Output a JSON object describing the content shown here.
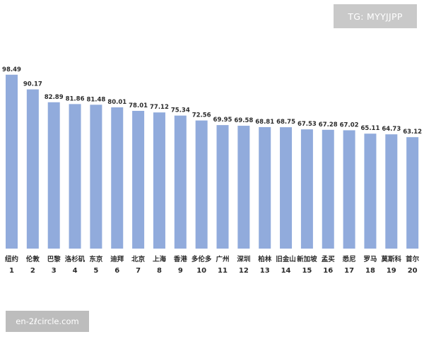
{
  "watermark_top": "TG: MYYJJPP",
  "watermark_bottom": "en-2ℓcircle.com",
  "bar_color": "#91abdc",
  "chart_data": {
    "type": "bar",
    "categories": [
      "纽约",
      "伦敦",
      "巴黎",
      "洛杉矶",
      "东京",
      "迪拜",
      "北京",
      "上海",
      "香港",
      "多伦多",
      "广州",
      "深圳",
      "柏林",
      "旧金山",
      "新加坡",
      "孟买",
      "悉尼",
      "罗马",
      "莫斯科",
      "首尔"
    ],
    "ranks": [
      "1",
      "2",
      "3",
      "4",
      "5",
      "6",
      "7",
      "8",
      "9",
      "10",
      "11",
      "12",
      "13",
      "14",
      "15",
      "16",
      "17",
      "18",
      "19",
      "20"
    ],
    "values": [
      98.49,
      90.17,
      82.89,
      81.86,
      81.48,
      80.01,
      78.01,
      77.12,
      75.34,
      72.56,
      69.95,
      69.58,
      68.81,
      68.75,
      67.53,
      67.28,
      67.02,
      65.11,
      64.73,
      63.12
    ],
    "value_labels": [
      "98.49",
      "90.17",
      "82.89",
      "81.86",
      "81.48",
      "80.01",
      "78.01",
      "77.12",
      "75.34",
      "72.56",
      "69.95",
      "69.58",
      "68.81",
      "68.75",
      "67.53",
      "67.28",
      "67.02",
      "65.11",
      "64.73",
      "63.12"
    ],
    "ylim": [
      0,
      100
    ],
    "grid": false
  }
}
